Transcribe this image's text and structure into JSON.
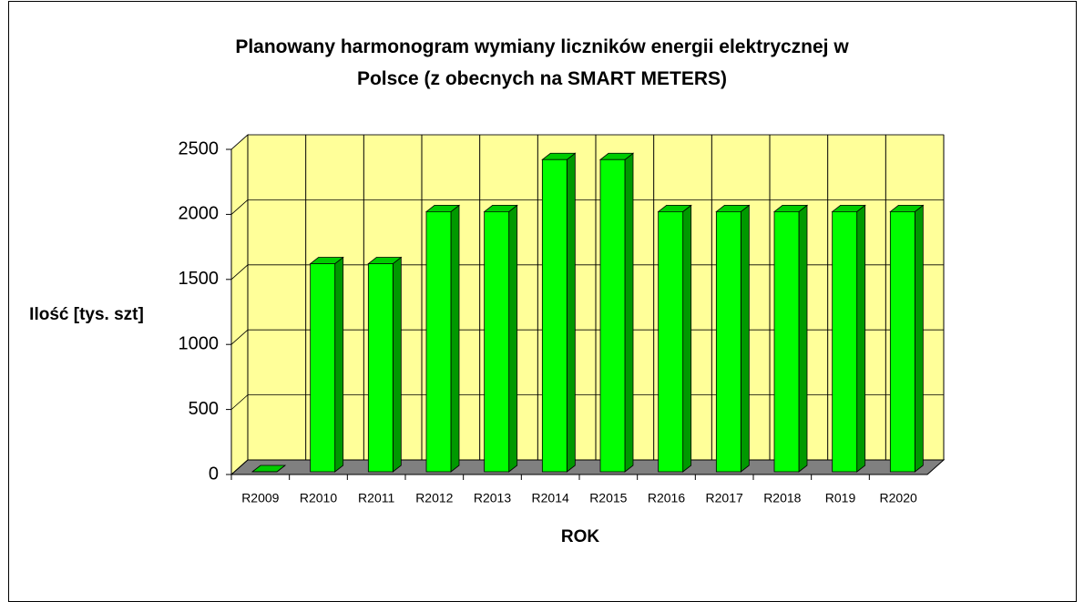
{
  "chart_data": {
    "type": "bar",
    "title": "Planowany harmonogram wymiany liczników energii elektrycznej w\nPolsce (z obecnych na SMART METERS)",
    "y_label": "Ilość [tys. szt]",
    "x_label": "ROK",
    "categories": [
      "R2009",
      "R2010",
      "R2011",
      "R2012",
      "R2013",
      "R2014",
      "R2015",
      "R2016",
      "R2017",
      "R2018",
      "R019",
      "R2020"
    ],
    "values": [
      0,
      1600,
      1600,
      2000,
      2000,
      2400,
      2400,
      2000,
      2000,
      2000,
      2000,
      2000
    ],
    "color": "#00ff00",
    "ylim": [
      0,
      2500
    ],
    "yticks": [
      0,
      500,
      1000,
      1500,
      2000,
      2500
    ],
    "grid": true
  }
}
